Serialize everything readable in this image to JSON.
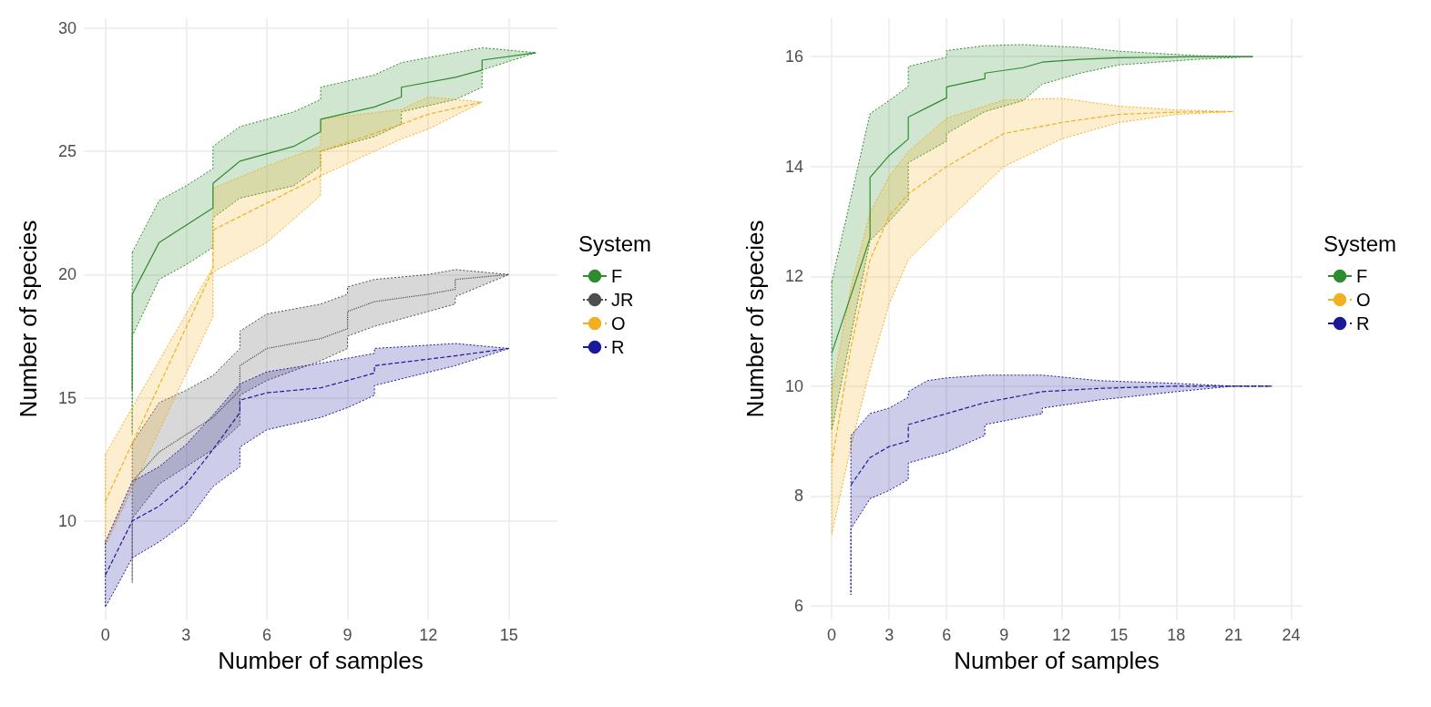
{
  "chart_data": [
    {
      "type": "line",
      "xlabel": "Number of samples",
      "ylabel": "Number of species",
      "legend_title": "System",
      "legend": "right",
      "grid": true,
      "xlim": [
        -0.8,
        16.8
      ],
      "ylim": [
        6.0,
        30.4
      ],
      "xticks": [
        0,
        3,
        6,
        9,
        12,
        15
      ],
      "yticks": [
        10,
        15,
        20,
        25,
        30
      ],
      "series": [
        {
          "name": "F",
          "color": "#2e8b2e",
          "line_style": "solid",
          "x": [
            1,
            1,
            2,
            3,
            4,
            4,
            5,
            7,
            8,
            8,
            10,
            11,
            11,
            13,
            14,
            14,
            16
          ],
          "values": [
            15.3,
            19.2,
            21.3,
            22.0,
            22.7,
            23.7,
            24.6,
            25.2,
            25.8,
            26.3,
            26.8,
            27.2,
            27.6,
            28.0,
            28.3,
            28.7,
            29.0
          ],
          "upper": [
            20.9,
            20.9,
            23.0,
            23.6,
            24.3,
            25.2,
            26.0,
            26.6,
            27.1,
            27.6,
            28.1,
            28.6,
            28.6,
            29.0,
            29.2,
            29.2,
            29.0
          ],
          "lower": [
            13.5,
            17.5,
            19.8,
            20.4,
            21.1,
            22.3,
            23.1,
            23.6,
            24.4,
            25.0,
            25.6,
            26.1,
            26.6,
            27.1,
            27.6,
            28.3,
            29.0
          ]
        },
        {
          "name": "JR",
          "color": "#4d4d4d",
          "line_style": "dotted",
          "x": [
            1,
            1,
            2,
            3,
            4,
            5,
            5,
            6,
            8,
            9,
            9,
            10,
            12,
            13,
            13,
            15
          ],
          "values": [
            11.6,
            11.6,
            12.8,
            13.5,
            14.2,
            15.3,
            16.3,
            17.0,
            17.4,
            17.8,
            18.5,
            18.9,
            19.2,
            19.4,
            19.8,
            20.0
          ],
          "upper": [
            13.15,
            13.15,
            14.8,
            15.3,
            15.9,
            17.0,
            17.7,
            18.4,
            18.8,
            19.2,
            19.5,
            19.8,
            20.0,
            20.2,
            20.2,
            20.0
          ],
          "lower": [
            7.5,
            10.1,
            11.5,
            12.2,
            12.9,
            13.9,
            15.1,
            15.7,
            16.5,
            17.0,
            17.5,
            17.9,
            18.5,
            18.8,
            19.1,
            20.0
          ]
        },
        {
          "name": "O",
          "color": "#f0b020",
          "line_style": "dashed",
          "x": [
            0,
            4,
            4,
            6,
            8,
            8,
            11,
            12,
            14
          ],
          "values": [
            10.8,
            20.2,
            21.8,
            22.9,
            24.0,
            25.0,
            26.1,
            26.5,
            27.0
          ],
          "upper": [
            12.7,
            20.3,
            23.5,
            24.4,
            25.2,
            26.3,
            26.7,
            27.2,
            27.0
          ],
          "lower": [
            9.0,
            18.3,
            20.1,
            21.3,
            23.2,
            24.0,
            25.5,
            25.9,
            27.0
          ]
        },
        {
          "name": "R",
          "color": "#1a1a99",
          "line_style": "dashed",
          "x": [
            0,
            1,
            2,
            3,
            4,
            5,
            5,
            6,
            8,
            9,
            10,
            10,
            13,
            15
          ],
          "values": [
            7.8,
            10.0,
            10.6,
            11.5,
            12.9,
            14.4,
            14.9,
            15.2,
            15.4,
            15.7,
            16.0,
            16.3,
            16.7,
            17.0
          ],
          "upper": [
            9.15,
            11.6,
            12.2,
            13.1,
            14.3,
            15.56,
            15.56,
            16.05,
            16.4,
            16.6,
            16.8,
            17.0,
            17.2,
            17.0
          ],
          "lower": [
            6.5,
            8.5,
            9.15,
            9.94,
            11.4,
            12.2,
            13.0,
            13.7,
            14.2,
            14.6,
            15.1,
            15.5,
            16.3,
            17.0
          ]
        }
      ]
    },
    {
      "type": "line",
      "xlabel": "Number of samples",
      "ylabel": "Number of species",
      "legend_title": "System",
      "legend": "right",
      "grid": true,
      "xlim": [
        -1.1,
        24.6
      ],
      "ylim": [
        5.75,
        16.7
      ],
      "xticks": [
        0,
        3,
        6,
        9,
        12,
        15,
        18,
        21,
        24
      ],
      "yticks": [
        6,
        8,
        10,
        12,
        14,
        16
      ],
      "series": [
        {
          "name": "F",
          "color": "#2e8b2e",
          "line_style": "solid",
          "x": [
            0,
            2,
            2,
            3,
            4,
            4,
            6,
            6,
            8,
            8,
            10,
            11,
            13,
            15,
            19,
            22
          ],
          "values": [
            10.6,
            12.7,
            13.8,
            14.2,
            14.5,
            14.9,
            15.25,
            15.45,
            15.6,
            15.7,
            15.8,
            15.9,
            15.95,
            15.98,
            16.0,
            16.0
          ],
          "upper": [
            11.9,
            14.96,
            14.96,
            15.2,
            15.46,
            15.82,
            15.99,
            16.11,
            16.2,
            16.2,
            16.22,
            16.2,
            16.17,
            16.1,
            16.02,
            16.0
          ],
          "lower": [
            9.2,
            12.65,
            12.65,
            13.0,
            13.38,
            14.07,
            14.46,
            14.6,
            15.0,
            15.0,
            15.2,
            15.5,
            15.7,
            15.85,
            15.95,
            16.0
          ]
        },
        {
          "name": "O",
          "color": "#f0b020",
          "line_style": "dashed",
          "x": [
            0,
            1,
            2,
            3,
            4,
            6,
            9,
            12,
            15,
            18,
            21
          ],
          "values": [
            8.6,
            10.7,
            12.3,
            13.1,
            13.5,
            14.0,
            14.6,
            14.8,
            14.95,
            14.99,
            15
          ],
          "upper": [
            9.9,
            11.8,
            13.16,
            13.82,
            14.27,
            14.88,
            15.21,
            15.24,
            15.1,
            15.03,
            15
          ],
          "lower": [
            7.3,
            8.9,
            10.3,
            11.5,
            12.3,
            13.0,
            14.0,
            14.5,
            14.8,
            14.95,
            15
          ]
        },
        {
          "name": "R",
          "color": "#1a1a99",
          "line_style": "dashed",
          "x": [
            1,
            1,
            2,
            3,
            4,
            4,
            5,
            6,
            8,
            8,
            11,
            11,
            14,
            18,
            21,
            23
          ],
          "values": [
            8.2,
            8.2,
            8.7,
            8.9,
            9.0,
            9.3,
            9.4,
            9.5,
            9.7,
            9.7,
            9.9,
            9.9,
            9.96,
            10.0,
            10.0,
            10.0
          ],
          "upper": [
            9.1,
            9.1,
            9.5,
            9.6,
            9.8,
            9.9,
            10.1,
            10.15,
            10.2,
            10.2,
            10.2,
            10.2,
            10.1,
            10.05,
            10.0,
            10.0
          ],
          "lower": [
            6.2,
            7.4,
            7.95,
            8.1,
            8.3,
            8.6,
            8.7,
            8.8,
            9.1,
            9.3,
            9.5,
            9.6,
            9.75,
            9.9,
            10.0,
            10.0
          ]
        }
      ]
    }
  ]
}
